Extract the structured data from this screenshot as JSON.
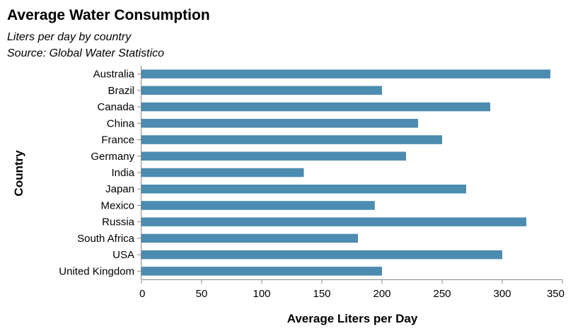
{
  "chart_data": {
    "type": "bar",
    "orientation": "horizontal",
    "title": "Average Water Consumption",
    "subtitle": [
      "Liters per day by country",
      "Source: Global Water Statistico"
    ],
    "xlabel": "Average Liters per Day",
    "ylabel": "Country",
    "xlim": [
      0,
      350
    ],
    "xticks": [
      0,
      50,
      100,
      150,
      200,
      250,
      300,
      350
    ],
    "categories": [
      "Australia",
      "Brazil",
      "Canada",
      "China",
      "France",
      "Germany",
      "India",
      "Japan",
      "Mexico",
      "Russia",
      "South Africa",
      "USA",
      "United Kingdom"
    ],
    "values": [
      340,
      200,
      290,
      230,
      250,
      220,
      135,
      270,
      194,
      320,
      180,
      300,
      200
    ],
    "grid": false,
    "legend": "none",
    "bar_color": "#4c8cb0"
  }
}
